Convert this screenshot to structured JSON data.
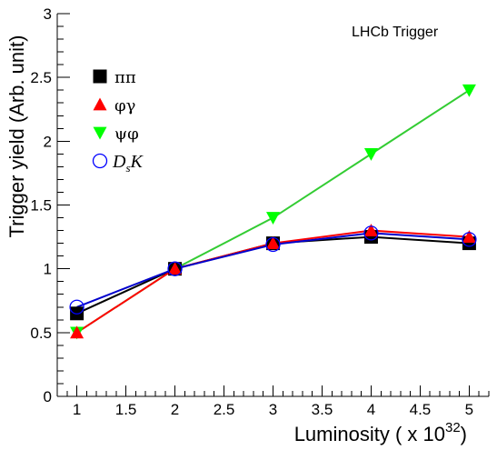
{
  "chart_data": {
    "type": "line",
    "xlabel_main": "Luminosity ( x 10",
    "xlabel_exp": "32",
    "xlabel_close": ")",
    "ylabel": "Trigger yield (Arb. unit)",
    "annotation": "LHCb Trigger",
    "xlim": [
      0.8,
      5.2
    ],
    "ylim": [
      0,
      3
    ],
    "x_ticks": [
      1,
      1.5,
      2,
      2.5,
      3,
      3.5,
      4,
      4.5,
      5
    ],
    "x_tick_labels": [
      "1",
      "1.5",
      "2",
      "2.5",
      "3",
      "3.5",
      "4",
      "4.5",
      "5"
    ],
    "y_ticks": [
      0,
      0.5,
      1,
      1.5,
      2,
      2.5,
      3
    ],
    "y_tick_labels": [
      "0",
      "0.5",
      "1",
      "1.5",
      "2",
      "2.5",
      "3"
    ],
    "legend_position": "top-left",
    "grid": false,
    "series": [
      {
        "name": "ππ",
        "marker": "square",
        "color": "#000000",
        "line_color": "#000000",
        "x": [
          1,
          2,
          3,
          4,
          5
        ],
        "y": [
          0.65,
          1.0,
          1.2,
          1.25,
          1.2
        ]
      },
      {
        "name": "φγ",
        "marker": "triangle-up",
        "color": "#ff0000",
        "line_color": "#ff0000",
        "x": [
          1,
          2,
          3,
          4,
          5
        ],
        "y": [
          0.5,
          1.0,
          1.2,
          1.3,
          1.25
        ]
      },
      {
        "name": "ψφ",
        "marker": "triangle-down",
        "color": "#00ff00",
        "line_color": "#33cc33",
        "x": [
          1,
          2,
          3,
          4,
          5
        ],
        "y": [
          0.5,
          1.0,
          1.4,
          1.9,
          2.4
        ]
      },
      {
        "name_main": "D",
        "name_sub": "s",
        "name_tail": "K",
        "marker": "open-circle",
        "color": "#0000ff",
        "line_color": "#0000cc",
        "x": [
          1,
          2,
          3,
          4,
          5
        ],
        "y": [
          0.7,
          1.0,
          1.19,
          1.28,
          1.23
        ]
      }
    ]
  }
}
